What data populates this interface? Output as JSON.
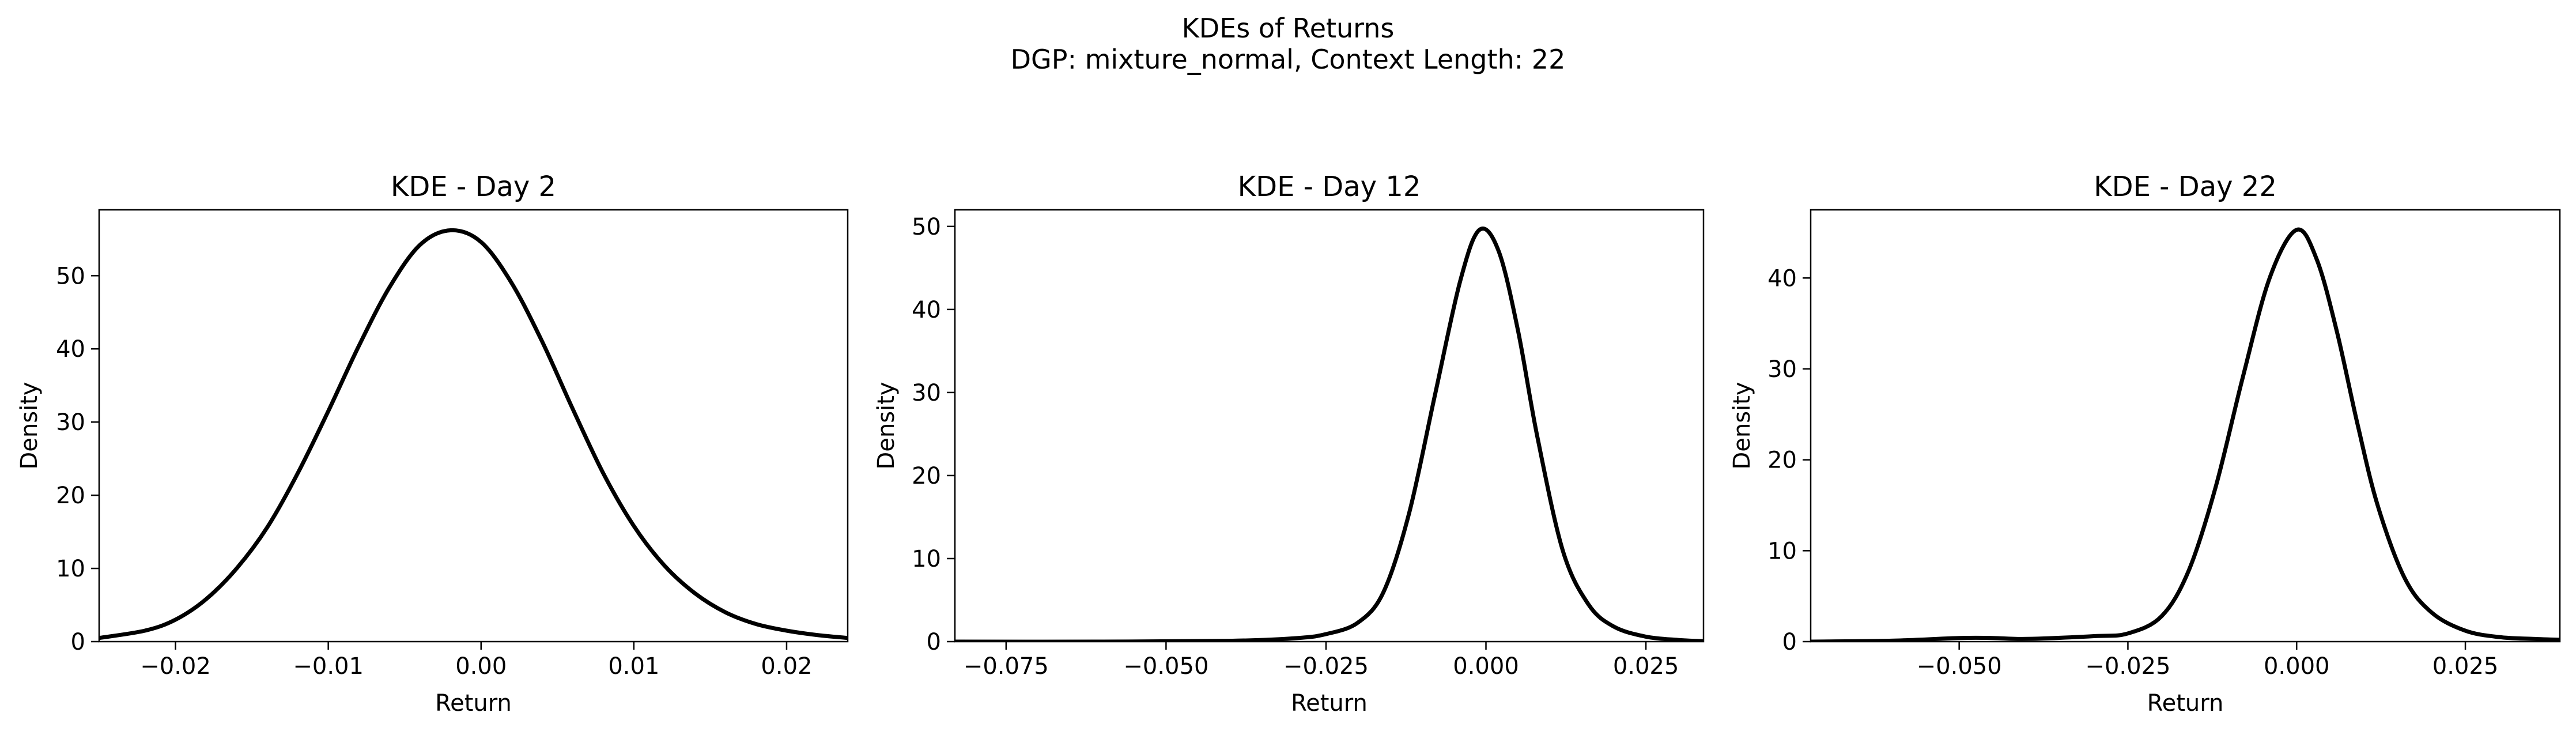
{
  "figure": {
    "title_line1": "KDEs of Returns",
    "title_line2": "DGP: mixture_normal, Context Length: 22"
  },
  "chart_data": [
    {
      "type": "line",
      "title": "KDE - Day 2",
      "xlabel": "Return",
      "ylabel": "Density",
      "xlim": [
        -0.025,
        0.024
      ],
      "ylim": [
        0,
        59
      ],
      "xticks": [
        -0.02,
        -0.01,
        0.0,
        0.01,
        0.02
      ],
      "xtick_labels": [
        "−0.02",
        "−0.01",
        "0.00",
        "0.01",
        "0.02"
      ],
      "yticks": [
        0,
        10,
        20,
        30,
        40,
        50
      ],
      "ytick_labels": [
        "0",
        "10",
        "20",
        "30",
        "40",
        "50"
      ],
      "grid": false,
      "line_color": "#000000",
      "series": [
        {
          "x": [
            -0.025,
            -0.022,
            -0.02,
            -0.018,
            -0.016,
            -0.014,
            -0.012,
            -0.01,
            -0.008,
            -0.006,
            -0.004,
            -0.002,
            0.0,
            0.002,
            0.004,
            0.006,
            0.008,
            0.01,
            0.012,
            0.014,
            0.016,
            0.018,
            0.02,
            0.022,
            0.024
          ],
          "y": [
            0.5,
            1.5,
            3.0,
            5.8,
            10.0,
            15.6,
            23.0,
            31.5,
            40.4,
            48.4,
            54.2,
            56.2,
            54.6,
            49.0,
            41.0,
            31.8,
            23.0,
            15.8,
            10.4,
            6.6,
            4.0,
            2.4,
            1.5,
            0.9,
            0.5
          ]
        }
      ]
    },
    {
      "type": "line",
      "title": "KDE - Day 12",
      "xlabel": "Return",
      "ylabel": "Density",
      "xlim": [
        -0.083,
        0.034
      ],
      "ylim": [
        0,
        52
      ],
      "xticks": [
        -0.075,
        -0.05,
        -0.025,
        0.0,
        0.025
      ],
      "xtick_labels": [
        "−0.075",
        "−0.050",
        "−0.025",
        "0.000",
        "0.025"
      ],
      "yticks": [
        0,
        10,
        20,
        30,
        40,
        50
      ],
      "ytick_labels": [
        "0",
        "10",
        "20",
        "30",
        "40",
        "50"
      ],
      "grid": false,
      "line_color": "#000000",
      "series": [
        {
          "x": [
            -0.083,
            -0.06,
            -0.04,
            -0.03,
            -0.025,
            -0.02,
            -0.016,
            -0.012,
            -0.008,
            -0.004,
            -0.001,
            0.002,
            0.005,
            0.008,
            0.012,
            0.016,
            0.02,
            0.025,
            0.03,
            0.034
          ],
          "y": [
            0.0,
            0.0,
            0.1,
            0.4,
            0.9,
            2.3,
            6.0,
            15.5,
            29.6,
            43.5,
            49.6,
            47.0,
            37.5,
            24.8,
            11.0,
            4.5,
            1.8,
            0.6,
            0.2,
            0.05
          ]
        }
      ]
    },
    {
      "type": "line",
      "title": "KDE - Day 22",
      "xlabel": "Return",
      "ylabel": "Density",
      "xlim": [
        -0.072,
        0.039
      ],
      "ylim": [
        0,
        47.5
      ],
      "xticks": [
        -0.05,
        -0.025,
        0.0,
        0.025
      ],
      "xtick_labels": [
        "−0.050",
        "−0.025",
        "0.000",
        "0.025"
      ],
      "yticks": [
        0,
        10,
        20,
        30,
        40
      ],
      "ytick_labels": [
        "0",
        "10",
        "20",
        "30",
        "40"
      ],
      "grid": false,
      "line_color": "#000000",
      "series": [
        {
          "x": [
            -0.072,
            -0.06,
            -0.05,
            -0.045,
            -0.04,
            -0.03,
            -0.025,
            -0.02,
            -0.016,
            -0.012,
            -0.008,
            -0.004,
            0.0,
            0.003,
            0.006,
            0.009,
            0.012,
            0.016,
            0.02,
            0.025,
            0.03,
            0.035,
            0.039
          ],
          "y": [
            0.0,
            0.1,
            0.4,
            0.4,
            0.3,
            0.6,
            0.9,
            2.8,
            7.8,
            17.0,
            29.0,
            40.0,
            45.3,
            42.0,
            34.0,
            24.0,
            15.0,
            7.0,
            3.2,
            1.2,
            0.5,
            0.3,
            0.2
          ]
        }
      ]
    }
  ]
}
